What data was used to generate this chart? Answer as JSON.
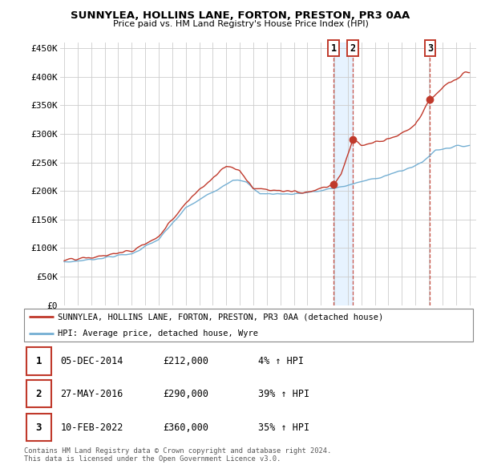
{
  "title": "SUNNYLEA, HOLLINS LANE, FORTON, PRESTON, PR3 0AA",
  "subtitle": "Price paid vs. HM Land Registry's House Price Index (HPI)",
  "ylim": [
    0,
    460000
  ],
  "yticks": [
    0,
    50000,
    100000,
    150000,
    200000,
    250000,
    300000,
    350000,
    400000,
    450000
  ],
  "ytick_labels": [
    "£0",
    "£50K",
    "£100K",
    "£150K",
    "£200K",
    "£250K",
    "£300K",
    "£350K",
    "£400K",
    "£450K"
  ],
  "x_start_year": 1995,
  "x_end_year": 2025,
  "legend_line1": "SUNNYLEA, HOLLINS LANE, FORTON, PRESTON, PR3 0AA (detached house)",
  "legend_line2": "HPI: Average price, detached house, Wyre",
  "sale1_date": "05-DEC-2014",
  "sale1_price": 212000,
  "sale1_hpi": "4%",
  "sale1_x": 2014.958,
  "sale2_date": "27-MAY-2016",
  "sale2_price": 290000,
  "sale2_hpi": "39%",
  "sale2_x": 2016.375,
  "sale3_date": "10-FEB-2022",
  "sale3_price": 360000,
  "sale3_hpi": "35%",
  "sale3_x": 2022.083,
  "footer": "Contains HM Land Registry data © Crown copyright and database right 2024.\nThis data is licensed under the Open Government Licence v3.0.",
  "hpi_color": "#74afd3",
  "price_color": "#c0392b",
  "shade_color": "#ddeeff",
  "marker_color_box": "#c0392b",
  "background_color": "#ffffff",
  "grid_color": "#cccccc"
}
